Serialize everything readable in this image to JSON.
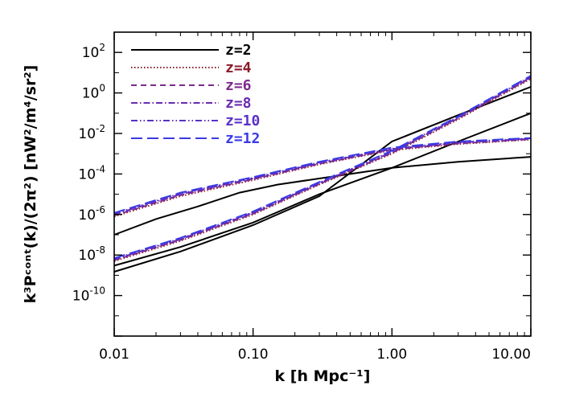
{
  "chart_data": {
    "type": "line",
    "x_scale": "log",
    "y_scale": "log",
    "xlim": [
      0.01,
      10.0
    ],
    "ylim": [
      1e-12,
      1000.0
    ],
    "xlabel": "k [h Mpc⁻¹]",
    "ylabel": "k³Pᶜᵒⁿᵗ(k)/(2π²) [nW²/m⁴/sr²]",
    "x_ticks": [
      {
        "value": 0.01,
        "label": "0.01"
      },
      {
        "value": 0.1,
        "label": "0.10"
      },
      {
        "value": 1.0,
        "label": "1.00"
      },
      {
        "value": 10.0,
        "label": "10.00"
      }
    ],
    "y_ticks": [
      {
        "value": 100.0,
        "mant": "10",
        "exp": "2"
      },
      {
        "value": 1.0,
        "mant": "10",
        "exp": "0"
      },
      {
        "value": 0.01,
        "mant": "10",
        "exp": "-2"
      },
      {
        "value": 0.0001,
        "mant": "10",
        "exp": "-4"
      },
      {
        "value": 1e-06,
        "mant": "10",
        "exp": "-6"
      },
      {
        "value": 1e-08,
        "mant": "10",
        "exp": "-8"
      },
      {
        "value": 1e-10,
        "mant": "10",
        "exp": "-10"
      }
    ],
    "grid": false,
    "legend_position": "top-left",
    "series": [
      {
        "name": "z=2",
        "color": "#000000",
        "dash": "solid",
        "curves": [
          [
            [
              0.01,
              1e-07
            ],
            [
              0.02,
              6e-07
            ],
            [
              0.04,
              2.5e-06
            ],
            [
              0.08,
              1.2e-05
            ],
            [
              0.15,
              3e-05
            ],
            [
              0.3,
              6e-05
            ],
            [
              0.6,
              0.00012
            ],
            [
              1.0,
              0.0002
            ],
            [
              3.0,
              0.0004
            ],
            [
              10.0,
              0.0007
            ]
          ],
          [
            [
              0.01,
              3e-09
            ],
            [
              0.03,
              2.5e-08
            ],
            [
              0.1,
              4e-07
            ],
            [
              0.3,
              1e-05
            ],
            [
              1.0,
              0.0002
            ],
            [
              3.0,
              0.004
            ],
            [
              10.0,
              0.1
            ]
          ],
          [
            [
              0.01,
              1.5e-09
            ],
            [
              0.03,
              1.5e-08
            ],
            [
              0.1,
              3e-07
            ],
            [
              0.3,
              8e-06
            ],
            [
              1.0,
              0.004
            ],
            [
              3.0,
              0.08
            ],
            [
              10.0,
              2.0
            ]
          ]
        ]
      },
      {
        "name": "z=4",
        "color": "#8b1a2b",
        "dash": "dotted",
        "curves": [
          [
            [
              0.01,
              8e-07
            ],
            [
              0.03,
              8e-06
            ],
            [
              0.1,
              5e-05
            ],
            [
              0.3,
              0.0003
            ],
            [
              1.0,
              0.0015
            ],
            [
              3.0,
              0.003
            ],
            [
              10.0,
              0.005
            ]
          ],
          [
            [
              0.01,
              5e-09
            ],
            [
              0.03,
              5e-08
            ],
            [
              0.1,
              1e-06
            ],
            [
              0.3,
              3e-05
            ],
            [
              1.0,
              0.001
            ],
            [
              3.0,
              0.05
            ],
            [
              10.0,
              5.0
            ]
          ]
        ]
      },
      {
        "name": "z=6",
        "color": "#7b2a8c",
        "dash": "dashed",
        "curves": [
          [
            [
              0.01,
              9e-07
            ],
            [
              0.03,
              9e-06
            ],
            [
              0.1,
              5.5e-05
            ],
            [
              0.3,
              0.00032
            ],
            [
              1.0,
              0.0016
            ],
            [
              3.0,
              0.0032
            ],
            [
              10.0,
              0.0052
            ]
          ],
          [
            [
              0.01,
              5.5e-09
            ],
            [
              0.03,
              5.5e-08
            ],
            [
              0.1,
              1.1e-06
            ],
            [
              0.3,
              3.2e-05
            ],
            [
              1.0,
              0.0011
            ],
            [
              3.0,
              0.055
            ],
            [
              10.0,
              5.5
            ]
          ]
        ]
      },
      {
        "name": "z=8",
        "color": "#6a2bb0",
        "dash": "dashdot",
        "curves": [
          [
            [
              0.01,
              1e-06
            ],
            [
              0.03,
              1e-05
            ],
            [
              0.1,
              6e-05
            ],
            [
              0.3,
              0.00035
            ],
            [
              1.0,
              0.0017
            ],
            [
              3.0,
              0.0035
            ],
            [
              10.0,
              0.0055
            ]
          ],
          [
            [
              0.01,
              6e-09
            ],
            [
              0.03,
              6e-08
            ],
            [
              0.1,
              1.2e-06
            ],
            [
              0.3,
              3.5e-05
            ],
            [
              1.0,
              0.0012
            ],
            [
              3.0,
              0.06
            ],
            [
              10.0,
              6.0
            ]
          ]
        ]
      },
      {
        "name": "z=10",
        "color": "#5a30c8",
        "dash": "dashdotdot",
        "curves": [
          [
            [
              0.01,
              1.1e-06
            ],
            [
              0.03,
              1.1e-05
            ],
            [
              0.1,
              6.5e-05
            ],
            [
              0.3,
              0.00037
            ],
            [
              1.0,
              0.0018
            ],
            [
              3.0,
              0.0037
            ],
            [
              10.0,
              0.0058
            ]
          ],
          [
            [
              0.01,
              6.5e-09
            ],
            [
              0.03,
              6.5e-08
            ],
            [
              0.1,
              1.3e-06
            ],
            [
              0.3,
              3.7e-05
            ],
            [
              1.0,
              0.0013
            ],
            [
              3.0,
              0.065
            ],
            [
              10.0,
              6.5
            ]
          ]
        ]
      },
      {
        "name": "z=12",
        "color": "#3a3ae6",
        "dash": "longdash",
        "curves": [
          [
            [
              0.01,
              1.2e-06
            ],
            [
              0.03,
              1.2e-05
            ],
            [
              0.1,
              7e-05
            ],
            [
              0.3,
              0.0004
            ],
            [
              1.0,
              0.002
            ],
            [
              3.0,
              0.004
            ],
            [
              10.0,
              0.006
            ]
          ],
          [
            [
              0.01,
              7e-09
            ],
            [
              0.03,
              7e-08
            ],
            [
              0.1,
              1.4e-06
            ],
            [
              0.3,
              4e-05
            ],
            [
              1.0,
              0.0014
            ],
            [
              3.0,
              0.07
            ],
            [
              10.0,
              7.0
            ]
          ]
        ]
      }
    ]
  }
}
